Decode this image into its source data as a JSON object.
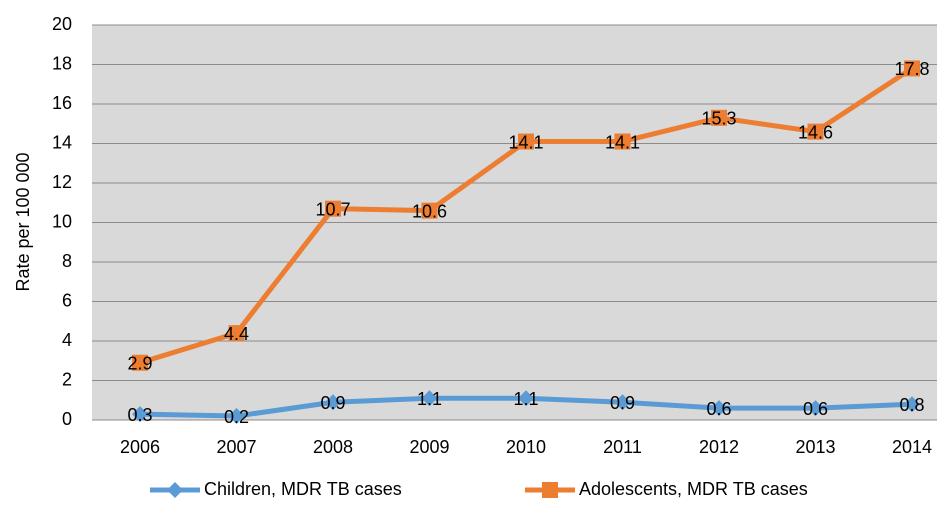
{
  "chart_data": {
    "type": "line",
    "y_label": "Rate per 100 000",
    "categories": [
      "2006",
      "2007",
      "2008",
      "2009",
      "2010",
      "2011",
      "2012",
      "2013",
      "2014"
    ],
    "series": [
      {
        "name": "Children, MDR TB cases",
        "color": "#5b9bd5",
        "marker": "diamond",
        "values": [
          0.3,
          0.2,
          0.9,
          1.1,
          1.1,
          0.9,
          0.6,
          0.6,
          0.8
        ]
      },
      {
        "name": "Adolescents, MDR TB cases",
        "color": "#ed7d31",
        "marker": "square",
        "values": [
          2.9,
          4.4,
          10.7,
          10.6,
          14.1,
          14.1,
          15.3,
          14.6,
          17.8
        ]
      }
    ],
    "ylim": [
      0,
      20
    ],
    "yticks": [
      0,
      2,
      4,
      6,
      8,
      10,
      12,
      14,
      16,
      18,
      20
    ],
    "grid": true,
    "legend": "bottom"
  }
}
